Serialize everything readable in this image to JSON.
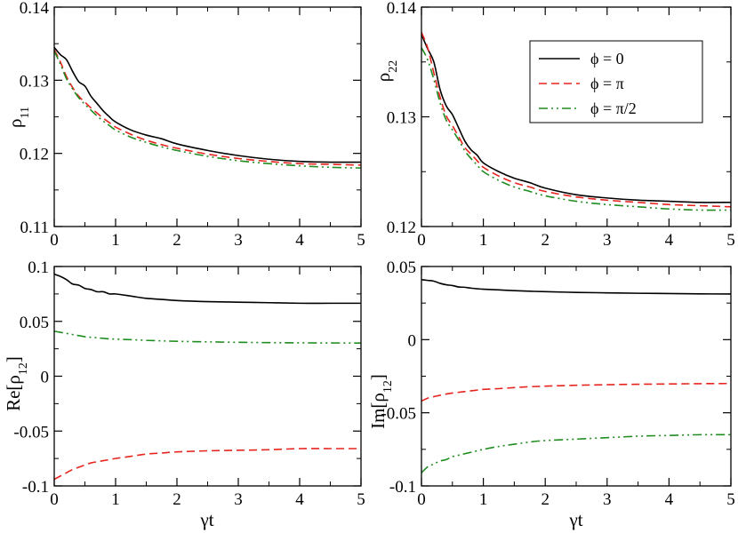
{
  "figure": {
    "line_styles": {
      "phi0": {
        "color": "#000000",
        "dash": ""
      },
      "phipi": {
        "color": "#e8241f",
        "dash": "9,5"
      },
      "phipi2": {
        "color": "#1f8c1f",
        "dash": "10,4,2,4,2,4"
      }
    },
    "legend": [
      {
        "key": "phi0",
        "label": "ϕ = 0"
      },
      {
        "key": "phipi",
        "label": "ϕ = π"
      },
      {
        "key": "phipi2",
        "label": "ϕ = π/2"
      }
    ]
  },
  "chart_data": [
    {
      "id": "rho11",
      "type": "line",
      "ylabel": "ρ11",
      "ylabel_main": "ρ",
      "ylabel_sub": "11",
      "xlabel": "",
      "xlim": [
        0,
        5
      ],
      "ylim": [
        0.11,
        0.14
      ],
      "xticks": [
        0,
        1,
        2,
        3,
        4,
        5
      ],
      "xtick_labels": [
        "0",
        "1",
        "2",
        "3",
        "4",
        "5"
      ],
      "yticks": [
        0.11,
        0.12,
        0.13,
        0.14
      ],
      "ytick_labels": [
        "0.11",
        "0.12",
        "0.13",
        "0.14"
      ],
      "x": [
        0,
        0.1,
        0.2,
        0.3,
        0.4,
        0.5,
        0.6,
        0.7,
        0.8,
        0.9,
        1.0,
        1.25,
        1.5,
        1.75,
        2.0,
        2.5,
        3.0,
        3.5,
        4.0,
        4.5,
        5.0
      ],
      "series": [
        {
          "name": "phi0",
          "values": [
            0.1345,
            0.1335,
            0.1328,
            0.1312,
            0.1298,
            0.1292,
            0.1278,
            0.1268,
            0.1258,
            0.125,
            0.1243,
            0.1232,
            0.1225,
            0.122,
            0.1213,
            0.1204,
            0.1197,
            0.1192,
            0.1189,
            0.1188,
            0.1188
          ]
        },
        {
          "name": "phipi",
          "values": [
            0.1342,
            0.1325,
            0.1305,
            0.129,
            0.1278,
            0.127,
            0.1262,
            0.1255,
            0.1248,
            0.1242,
            0.1236,
            0.1226,
            0.1218,
            0.1212,
            0.1207,
            0.1199,
            0.1193,
            0.1189,
            0.1186,
            0.1185,
            0.1184
          ]
        },
        {
          "name": "phipi2",
          "values": [
            0.134,
            0.1322,
            0.1302,
            0.1288,
            0.1276,
            0.1267,
            0.1259,
            0.1251,
            0.1244,
            0.1238,
            0.1232,
            0.1222,
            0.1215,
            0.1209,
            0.1204,
            0.1196,
            0.119,
            0.1186,
            0.1183,
            0.1181,
            0.118
          ]
        }
      ]
    },
    {
      "id": "rho22",
      "type": "line",
      "ylabel": "ρ22",
      "ylabel_main": "ρ",
      "ylabel_sub": "22",
      "xlabel": "",
      "xlim": [
        0,
        5
      ],
      "ylim": [
        0.12,
        0.14
      ],
      "xticks": [
        0,
        1,
        2,
        3,
        4,
        5
      ],
      "xtick_labels": [
        "0",
        "1",
        "2",
        "3",
        "4",
        "5"
      ],
      "yticks": [
        0.12,
        0.13,
        0.14
      ],
      "ytick_labels": [
        "0.12",
        "0.13",
        "0.14"
      ],
      "x": [
        0,
        0.1,
        0.2,
        0.3,
        0.4,
        0.5,
        0.6,
        0.7,
        0.8,
        0.9,
        1.0,
        1.25,
        1.5,
        1.75,
        2.0,
        2.5,
        3.0,
        3.5,
        4.0,
        4.5,
        5.0
      ],
      "series": [
        {
          "name": "phi0",
          "values": [
            0.1375,
            0.1362,
            0.135,
            0.1325,
            0.131,
            0.1302,
            0.129,
            0.1278,
            0.127,
            0.1265,
            0.1258,
            0.125,
            0.1244,
            0.124,
            0.1235,
            0.1229,
            0.1226,
            0.1224,
            0.1223,
            0.1222,
            0.1222
          ]
        },
        {
          "name": "phipi",
          "values": [
            0.1377,
            0.1363,
            0.134,
            0.1318,
            0.1301,
            0.1292,
            0.1282,
            0.1272,
            0.1266,
            0.126,
            0.1254,
            0.1246,
            0.124,
            0.1236,
            0.1232,
            0.1227,
            0.1224,
            0.1222,
            0.122,
            0.1219,
            0.1218
          ]
        },
        {
          "name": "phipi2",
          "values": [
            0.1363,
            0.1352,
            0.1334,
            0.1313,
            0.1297,
            0.1288,
            0.1279,
            0.1269,
            0.1262,
            0.1256,
            0.125,
            0.1242,
            0.1236,
            0.1232,
            0.1228,
            0.1223,
            0.122,
            0.1218,
            0.1216,
            0.1215,
            0.1215
          ]
        }
      ]
    },
    {
      "id": "re_rho12",
      "type": "line",
      "ylabel": "Re[ρ12]",
      "ylabel_main": "Re[ρ",
      "ylabel_sub": "12",
      "ylabel_post": "]",
      "xlabel": "γt",
      "xlim": [
        0,
        5
      ],
      "ylim": [
        -0.1,
        0.1
      ],
      "xticks": [
        0,
        1,
        2,
        3,
        4,
        5
      ],
      "xtick_labels": [
        "0",
        "1",
        "2",
        "3",
        "4",
        "5"
      ],
      "yticks": [
        -0.1,
        -0.05,
        0,
        0.05,
        0.1
      ],
      "ytick_labels": [
        "-0.1",
        "-0.05",
        "0",
        "0.05",
        "0.1"
      ],
      "x": [
        0,
        0.1,
        0.2,
        0.3,
        0.4,
        0.5,
        0.6,
        0.7,
        0.8,
        0.9,
        1.0,
        1.25,
        1.5,
        1.75,
        2.0,
        2.5,
        3.0,
        3.5,
        4.0,
        4.5,
        5.0
      ],
      "series": [
        {
          "name": "phi0",
          "values": [
            0.093,
            0.091,
            0.088,
            0.084,
            0.083,
            0.08,
            0.079,
            0.077,
            0.077,
            0.075,
            0.075,
            0.073,
            0.071,
            0.07,
            0.069,
            0.068,
            0.0675,
            0.067,
            0.0665,
            0.0665,
            0.0665
          ]
        },
        {
          "name": "phipi",
          "values": [
            -0.094,
            -0.091,
            -0.088,
            -0.085,
            -0.083,
            -0.081,
            -0.079,
            -0.078,
            -0.077,
            -0.076,
            -0.075,
            -0.073,
            -0.071,
            -0.07,
            -0.069,
            -0.068,
            -0.0675,
            -0.067,
            -0.066,
            -0.066,
            -0.066
          ]
        },
        {
          "name": "phipi2",
          "values": [
            0.041,
            0.04,
            0.039,
            0.038,
            0.037,
            0.036,
            0.0355,
            0.035,
            0.0345,
            0.034,
            0.0338,
            0.0333,
            0.0327,
            0.0322,
            0.0318,
            0.0313,
            0.0309,
            0.0306,
            0.0304,
            0.0303,
            0.0302
          ]
        }
      ]
    },
    {
      "id": "im_rho12",
      "type": "line",
      "ylabel": "Im[ρ12]",
      "ylabel_main": "Im[ρ",
      "ylabel_sub": "12",
      "ylabel_post": "]",
      "xlabel": "γt",
      "xlim": [
        0,
        5
      ],
      "ylim": [
        -0.1,
        0.05
      ],
      "xticks": [
        0,
        1,
        2,
        3,
        4,
        5
      ],
      "xtick_labels": [
        "0",
        "1",
        "2",
        "3",
        "4",
        "5"
      ],
      "yticks": [
        -0.1,
        -0.05,
        0,
        0.05
      ],
      "ytick_labels": [
        "-0.1",
        "-0.05",
        "0",
        "0.05"
      ],
      "x": [
        0,
        0.1,
        0.2,
        0.3,
        0.4,
        0.5,
        0.6,
        0.7,
        0.8,
        0.9,
        1.0,
        1.25,
        1.5,
        1.75,
        2.0,
        2.5,
        3.0,
        3.5,
        4.0,
        4.5,
        5.0
      ],
      "series": [
        {
          "name": "phi0",
          "values": [
            0.041,
            0.0405,
            0.04,
            0.0385,
            0.0375,
            0.037,
            0.036,
            0.0358,
            0.0352,
            0.0348,
            0.0345,
            0.034,
            0.0335,
            0.0331,
            0.0328,
            0.0323,
            0.032,
            0.0317,
            0.0315,
            0.0313,
            0.0312
          ]
        },
        {
          "name": "phipi",
          "values": [
            -0.042,
            -0.04,
            -0.039,
            -0.038,
            -0.0372,
            -0.0365,
            -0.036,
            -0.0355,
            -0.035,
            -0.0345,
            -0.034,
            -0.0335,
            -0.0328,
            -0.0322,
            -0.0318,
            -0.0312,
            -0.0308,
            -0.0305,
            -0.0303,
            -0.0301,
            -0.03
          ]
        },
        {
          "name": "phipi2",
          "values": [
            -0.091,
            -0.087,
            -0.085,
            -0.083,
            -0.082,
            -0.08,
            -0.079,
            -0.078,
            -0.077,
            -0.076,
            -0.075,
            -0.073,
            -0.0715,
            -0.07,
            -0.069,
            -0.068,
            -0.067,
            -0.066,
            -0.0655,
            -0.065,
            -0.065
          ]
        }
      ]
    }
  ]
}
